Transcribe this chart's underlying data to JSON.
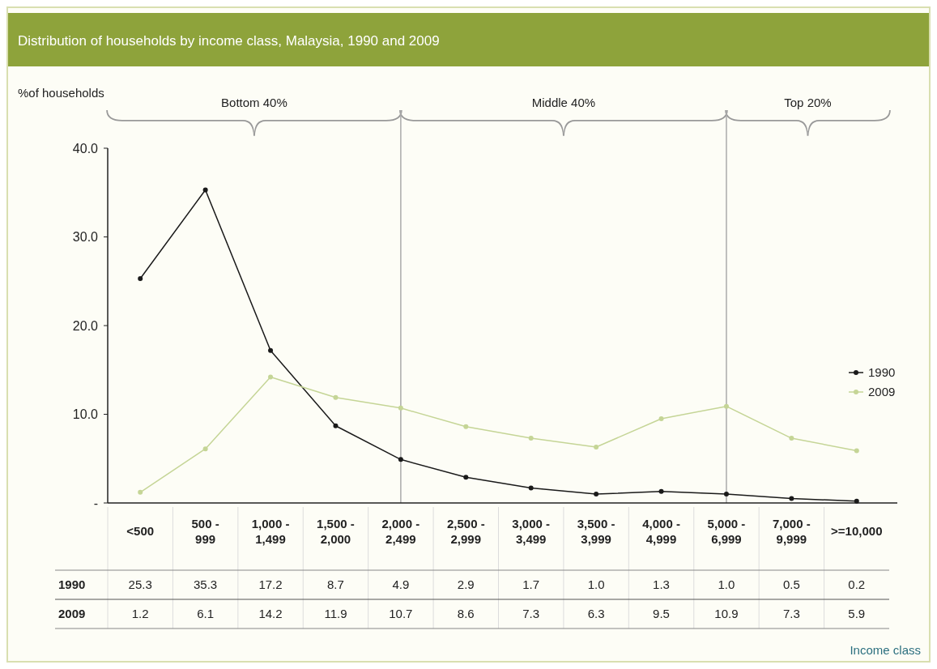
{
  "chart_data": {
    "type": "line",
    "title": "Distribution of households by income class, Malaysia, 1990 and 2009",
    "ylabel": "%of households",
    "categories": [
      "<500",
      "500 - 999",
      "1,000 - 1,499",
      "1,500 - 2,000",
      "2,000 - 2,499",
      "2,500 - 2,999",
      "3,000 - 3,499",
      "3,500 - 3,999",
      "4,000 - 4,999",
      "5,000 - 6,999",
      "7,000 - 9,999",
      ">=10,000"
    ],
    "series": [
      {
        "name": "1990",
        "color": "#1a1a1a",
        "values": [
          25.3,
          35.3,
          17.2,
          8.7,
          4.9,
          2.9,
          1.7,
          1.0,
          1.3,
          1.0,
          0.5,
          0.2
        ],
        "value_labels": [
          "25.3",
          "35.3",
          "17.2",
          "8.7",
          "4.9",
          "2.9",
          "1.7",
          "1.0",
          "1.3",
          "1.0",
          "0.5",
          "0.2"
        ]
      },
      {
        "name": "2009",
        "color": "#c5d596",
        "values": [
          1.2,
          6.1,
          14.2,
          11.9,
          10.7,
          8.6,
          7.3,
          6.3,
          9.5,
          10.9,
          7.3,
          5.9
        ],
        "value_labels": [
          "1.2",
          "6.1",
          "14.2",
          "11.9",
          "10.7",
          "8.6",
          "7.3",
          "6.3",
          "9.5",
          "10.9",
          "7.3",
          "5.9"
        ]
      }
    ],
    "ylim": [
      0,
      40
    ],
    "yticks": [
      {
        "value": 0,
        "label": "-"
      },
      {
        "value": 10,
        "label": "10.0"
      },
      {
        "value": 20,
        "label": "20.0"
      },
      {
        "value": 30,
        "label": "30.0"
      },
      {
        "value": 40,
        "label": "40.0"
      }
    ],
    "ref_lines": [
      {
        "axis": "x",
        "value": "2,000 - 2,499",
        "color": "#aaaaaa"
      },
      {
        "axis": "x",
        "value": "5,000 - 6,999",
        "color": "#aaaaaa"
      }
    ],
    "annotations": [
      "Bottom 40%",
      "Middle 40%",
      "Top 20%",
      "Income class"
    ],
    "grid": false,
    "legend": "right",
    "marker": "circle",
    "line_style": "solid"
  }
}
